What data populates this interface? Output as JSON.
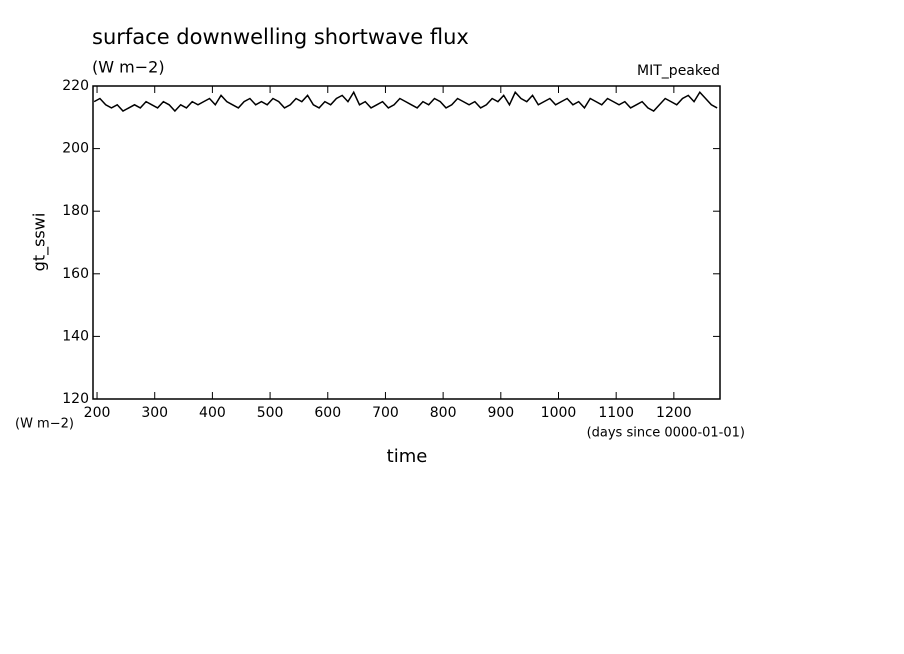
{
  "chart_data": {
    "type": "line",
    "title": "surface downwelling shortwave flux",
    "subtitle": "(W m−2)",
    "annotation": "MIT_peaked",
    "y_label": "gt_sswi",
    "y_unit": "(W m−2)",
    "x_label": "time",
    "x_unit": "(days since 0000-01-01)",
    "x": [
      195,
      205,
      215,
      225,
      235,
      245,
      255,
      265,
      275,
      285,
      295,
      305,
      315,
      325,
      335,
      345,
      355,
      365,
      375,
      385,
      395,
      405,
      415,
      425,
      435,
      445,
      455,
      465,
      475,
      485,
      495,
      505,
      515,
      525,
      535,
      545,
      555,
      565,
      575,
      585,
      595,
      605,
      615,
      625,
      635,
      645,
      655,
      665,
      675,
      685,
      695,
      705,
      715,
      725,
      735,
      745,
      755,
      765,
      775,
      785,
      795,
      805,
      815,
      825,
      835,
      845,
      855,
      865,
      875,
      885,
      895,
      905,
      915,
      925,
      935,
      945,
      955,
      965,
      975,
      985,
      995,
      1005,
      1015,
      1025,
      1035,
      1045,
      1055,
      1065,
      1075,
      1085,
      1095,
      1105,
      1115,
      1125,
      1135,
      1145,
      1155,
      1165,
      1175,
      1185,
      1195,
      1205,
      1215,
      1225,
      1235,
      1245,
      1255,
      1265,
      1275
    ],
    "series": [
      {
        "color": "#000000",
        "values": [
          215,
          216,
          214,
          213,
          214,
          212,
          213,
          214,
          213,
          215,
          214,
          213,
          215,
          214,
          212,
          214,
          213,
          215,
          214,
          215,
          216,
          214,
          217,
          215,
          214,
          213,
          215,
          216,
          214,
          215,
          214,
          216,
          215,
          213,
          214,
          216,
          215,
          217,
          214,
          213,
          215,
          214,
          216,
          217,
          215,
          218,
          214,
          215,
          213,
          214,
          215,
          213,
          214,
          216,
          215,
          214,
          213,
          215,
          214,
          216,
          215,
          213,
          214,
          216,
          215,
          214,
          215,
          213,
          214,
          216,
          215,
          217,
          214,
          218,
          216,
          215,
          217,
          214,
          215,
          216,
          214,
          215,
          216,
          214,
          215,
          213,
          216,
          215,
          214,
          216,
          215,
          214,
          215,
          213,
          214,
          215,
          213,
          212,
          214,
          216,
          215,
          214,
          216,
          217,
          215,
          218,
          216,
          214,
          213
        ]
      }
    ],
    "xlim": [
      193,
      1280
    ],
    "ylim": [
      120,
      220
    ],
    "xticks": [
      200,
      300,
      400,
      500,
      600,
      700,
      800,
      900,
      1000,
      1100,
      1200
    ],
    "yticks": [
      120,
      140,
      160,
      180,
      200,
      220
    ]
  }
}
